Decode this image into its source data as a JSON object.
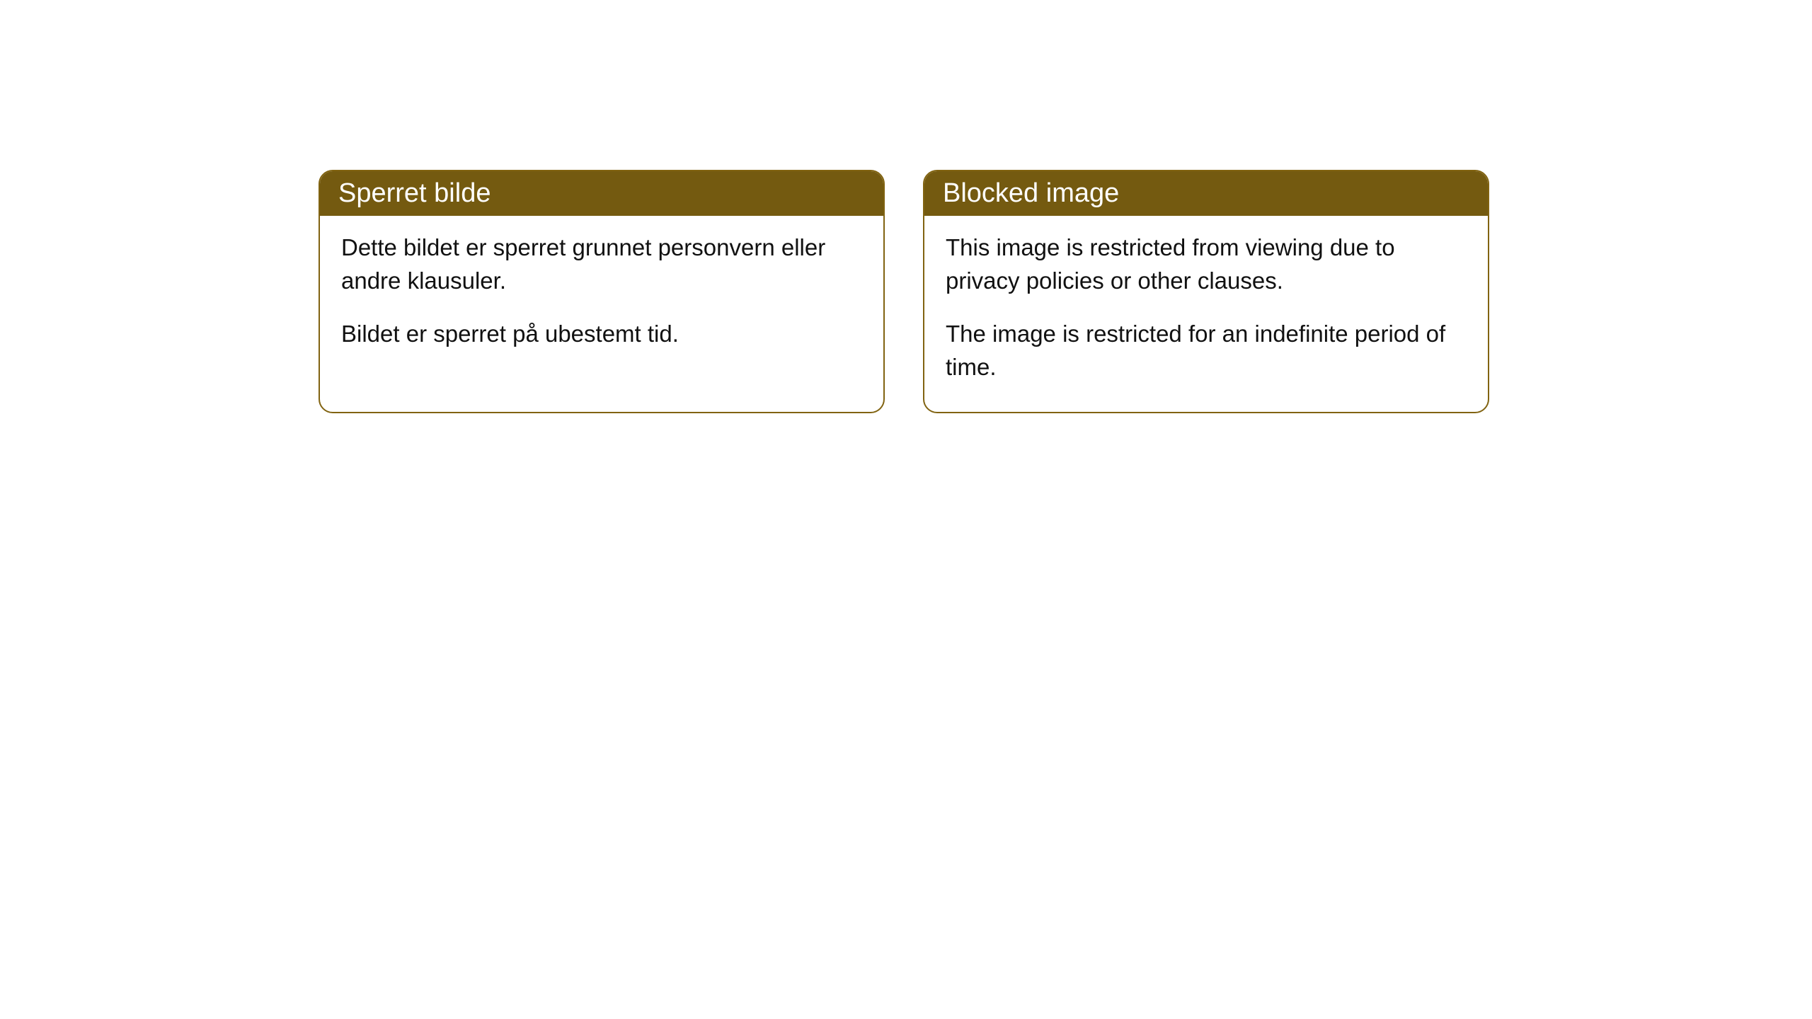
{
  "cards": [
    {
      "title": "Sperret bilde",
      "paragraphs": [
        "Dette bildet er sperret grunnet personvern eller andre klausuler.",
        "Bildet er sperret på ubestemt tid."
      ]
    },
    {
      "title": "Blocked image",
      "paragraphs": [
        "This image is restricted from viewing due to privacy policies or other clauses.",
        "The image is restricted for an indefinite period of time."
      ]
    }
  ],
  "styling": {
    "card_border_color": "#816311",
    "header_background_color": "#745a10",
    "header_text_color": "#ffffff",
    "body_text_color": "#111111",
    "background_color": "#ffffff",
    "border_radius": 20,
    "header_font_size": 38,
    "body_font_size": 33
  }
}
